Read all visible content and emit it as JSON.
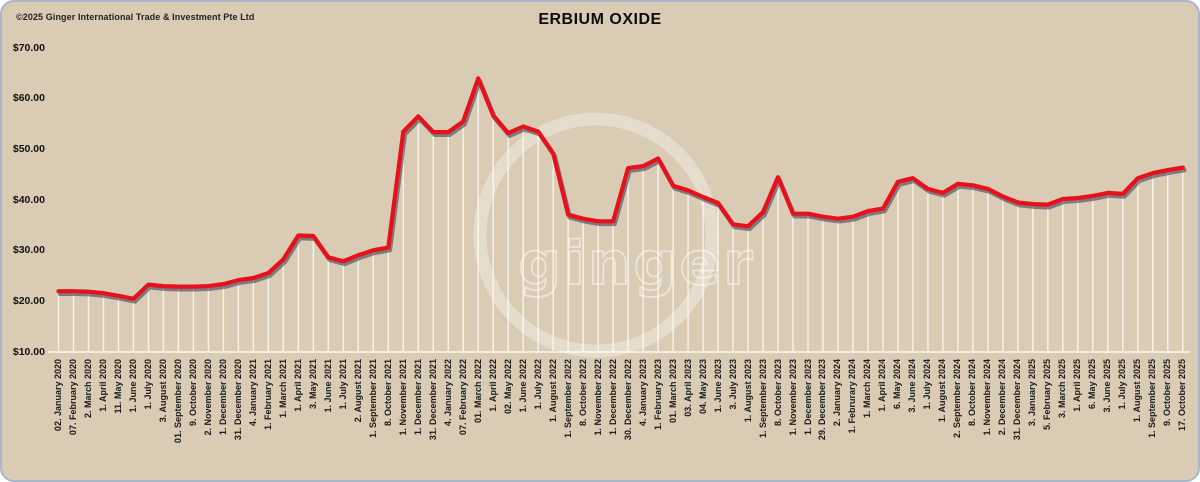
{
  "page": {
    "copyright": "©2025 Ginger International Trade & Investment Pte Ltd",
    "watermark_text": "ginger"
  },
  "chart_data": {
    "type": "line",
    "title": "ERBIUM OXIDE",
    "xlabel": "",
    "ylabel": "",
    "ylim": [
      10,
      70
    ],
    "y_tick_labels": [
      "$70.00",
      "$60.00",
      "$50.00",
      "$40.00",
      "$30.00",
      "$20.00",
      "$10.00"
    ],
    "y_tick_values": [
      70,
      60,
      50,
      40,
      30,
      20,
      10
    ],
    "grid": "vertical white drop-line from each data point to baseline",
    "legend": "none",
    "categories": [
      "02. January 2020",
      "07. February 2020",
      "2. March 2020",
      "1. April 2020",
      "11. May 2020",
      "1. June 2020",
      "1. July 2020",
      "3. August 2020",
      "01. September 2020",
      "9. October 2020",
      "2. November 2020",
      "1. December 2020",
      "31. December 2020",
      "4. January 2021",
      "1. February 2021",
      "1. March 2021",
      "1. April 2021",
      "3. May 2021",
      "1. June 2021",
      "1. July 2021",
      "2. August 2021",
      "1. September 2021",
      "8. October 2021",
      "1. November 2021",
      "1. December 2021",
      "31. December 2021",
      "4. January 2022",
      "07. February 2022",
      "01. March 2022",
      "1. April 2022",
      "02. May 2022",
      "1. June 2022",
      "1. July 2022",
      "1. August 2022",
      "1. September 2022",
      "8. October 2022",
      "1. November 2022",
      "1. December 2022",
      "30. December 2022",
      "4. January 2023",
      "1. February 2023",
      "01. March 2023",
      "03. April 2023",
      "04. May 2023",
      "1. June 2023",
      "3. July 2023",
      "1. August 2023",
      "1. September 2023",
      "8. October 2023",
      "1. November 2023",
      "1. December 2023",
      "29. December 2023",
      "2. January 2024",
      "1. Februrary 2024",
      "1. March 2024",
      "1. April 2024",
      "6. May 2024",
      "3. June 2024",
      "1. July 2024",
      "1. August 2024",
      "2. September 2024",
      "8. October 2024",
      "1. November 2024",
      "2. December 2024",
      "31. December 2024",
      "3. January 2025",
      "5. February 2025",
      "3. March 2025",
      "1. April 2025",
      "6. May 2025",
      "3. June 2025",
      "1. July 2025",
      "1. August 2025",
      "1. September 2025",
      "9. October 2025",
      "17. October 2025"
    ],
    "values": [
      22.0,
      22.0,
      21.9,
      21.6,
      21.1,
      20.5,
      23.3,
      23.0,
      22.9,
      22.9,
      23.0,
      23.4,
      24.2,
      24.6,
      25.6,
      28.3,
      33.0,
      32.9,
      28.7,
      27.9,
      29.1,
      30.1,
      30.6,
      53.5,
      56.5,
      53.4,
      53.4,
      55.5,
      64.0,
      56.7,
      53.2,
      54.5,
      53.5,
      49.2,
      37.1,
      36.3,
      35.8,
      35.8,
      46.3,
      46.7,
      48.2,
      42.8,
      41.9,
      40.6,
      39.4,
      35.2,
      34.8,
      37.6,
      44.5,
      37.3,
      37.3,
      36.7,
      36.3,
      36.7,
      37.8,
      38.3,
      43.6,
      44.3,
      42.2,
      41.4,
      43.2,
      42.9,
      42.2,
      40.7,
      39.5,
      39.2,
      39.1,
      40.2,
      40.4,
      40.8,
      41.4,
      41.2,
      44.3,
      45.3,
      45.9,
      46.4
    ],
    "colors": {
      "line": "#e8101a",
      "line_shadow": "#3f4259",
      "background": "#d9cbb4",
      "panel_border": "#a9b6ca",
      "drop_line": "#fdfbf4",
      "baseline": "#fffdf6",
      "watermark": "#ffffff",
      "text": "#1b1b1b"
    }
  }
}
